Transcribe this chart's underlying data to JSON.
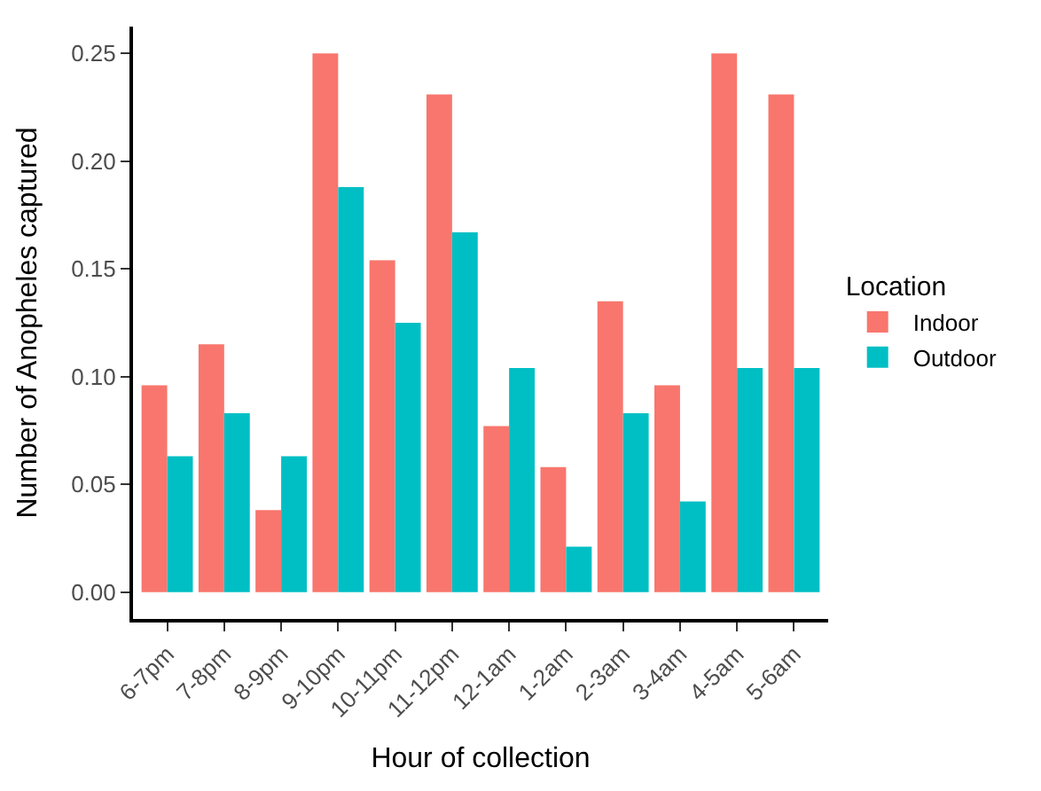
{
  "chart_data": {
    "type": "bar",
    "xlabel": "Hour of collection",
    "ylabel": "Number of Anopheles captured",
    "legend_title": "Location",
    "categories": [
      "6-7pm",
      "7-8pm",
      "8-9pm",
      "9-10pm",
      "10-11pm",
      "11-12pm",
      "12-1am",
      "1-2am",
      "2-3am",
      "3-4am",
      "4-5am",
      "5-6am"
    ],
    "series": [
      {
        "name": "Indoor",
        "color": "#f8766d",
        "values": [
          0.096,
          0.115,
          0.038,
          0.25,
          0.154,
          0.231,
          0.077,
          0.058,
          0.135,
          0.096,
          0.25,
          0.231
        ]
      },
      {
        "name": "Outdoor",
        "color": "#00bfc4",
        "values": [
          0.063,
          0.083,
          0.063,
          0.188,
          0.125,
          0.167,
          0.104,
          0.021,
          0.083,
          0.042,
          0.104,
          0.104
        ]
      }
    ],
    "ylim": [
      -0.0125,
      0.2625
    ],
    "yticks": [
      {
        "value": 0,
        "label": "0.00"
      },
      {
        "value": 0.05,
        "label": "0.05"
      },
      {
        "value": 0.1,
        "label": "0.10"
      },
      {
        "value": 0.15,
        "label": "0.15"
      },
      {
        "value": 0.2,
        "label": "0.20"
      },
      {
        "value": 0.25,
        "label": "0.25"
      }
    ],
    "legend": "right"
  }
}
